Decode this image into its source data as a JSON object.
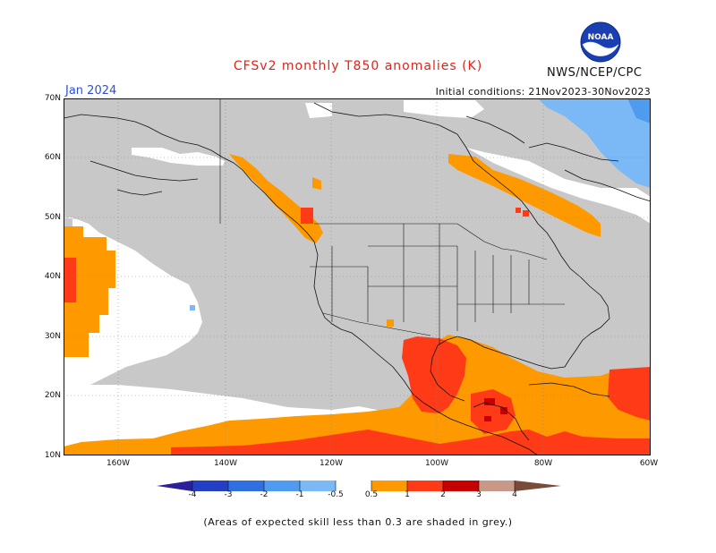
{
  "title": "CFSv2 monthly T850 anomalies (K)",
  "org": "NWS/NCEP/CPC",
  "logo_text": "NOAA",
  "month": "Jan 2024",
  "initial_conditions": "Initial conditions: 21Nov2023-30Nov2023",
  "lat_ticks": [
    "70N",
    "60N",
    "50N",
    "40N",
    "30N",
    "20N",
    "10N"
  ],
  "lon_ticks": [
    "160W",
    "140W",
    "120W",
    "100W",
    "80W",
    "60W"
  ],
  "colorbar": {
    "labels": [
      "-4",
      "-3",
      "-2",
      "-1",
      "-0.5",
      "0.5",
      "1",
      "2",
      "3",
      "4"
    ],
    "colors": [
      "#2b1f9c",
      "#2340c4",
      "#2f6fdf",
      "#4f9bf0",
      "#7ab9f5",
      "#ffffff",
      "#ff9900",
      "#ff3a16",
      "#c60000",
      "#9b0f0f",
      "#c89988",
      "#7a4a3a"
    ]
  },
  "colors": {
    "grey": "#c8c8c8",
    "white": "#ffffff",
    "orange": "#ff9900",
    "red": "#ff3a16",
    "darkred": "#c60000",
    "lightblue": "#7ab9f5",
    "blue": "#4f9bf0"
  },
  "footnote": "(Areas of expected skill less than 0.3 are shaded in grey.)"
}
